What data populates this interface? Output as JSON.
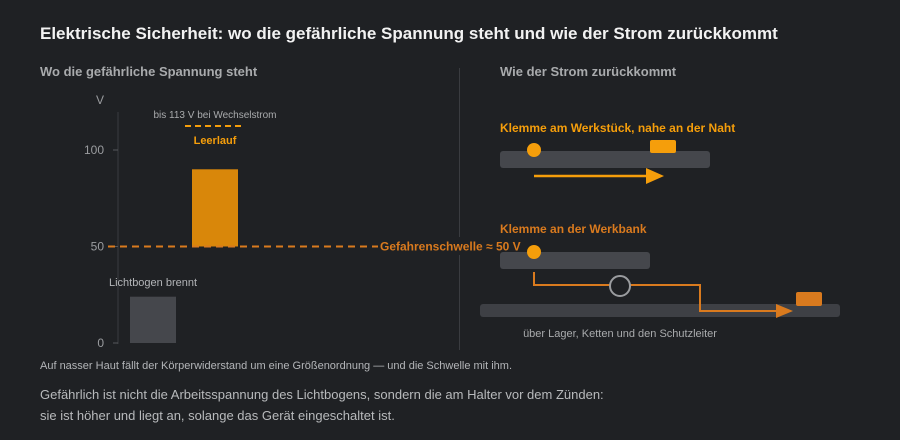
{
  "title": "Elektrische Sicherheit: wo die gefährliche Spannung steht und wie der Strom zurückkommt",
  "left_panel": {
    "heading": "Wo die gefährliche Spannung steht",
    "unit": "V",
    "ac_note": "bis 113 V bei Wechselstrom",
    "open_circuit_label": "Leerlauf",
    "arc_label": "Lichtbogen brennt",
    "threshold_label": "Gefahrenschwelle ≈ 50 V"
  },
  "chart_data": {
    "type": "bar",
    "ylabel": "V",
    "ylim": [
      0,
      120
    ],
    "ticks": [
      0,
      50,
      100
    ],
    "threshold": 50,
    "ac_max": 113,
    "bars": [
      {
        "label": "Lichtbogen brennt",
        "from": 0,
        "to": 24,
        "color": "#45474c"
      },
      {
        "label": "Leerlauf",
        "from": 50,
        "to": 90,
        "color": "#d9870a"
      }
    ]
  },
  "right_panel": {
    "heading": "Wie der Strom zurückkommt",
    "good_label": "Klemme am Werkstück, nahe an der Naht",
    "bad_label": "Klemme an der Werkbank",
    "path_note": "über Lager, Ketten und den Schutzleiter"
  },
  "footnote": "Auf nasser Haut fällt der Körperwiderstand um eine Größenordnung — und die Schwelle mit ihm.",
  "takeaway_line1": "Gefährlich ist nicht die Arbeitsspannung des Lichtbogens, sondern die am Halter vor dem Zünden:",
  "takeaway_line2": "sie ist höher und liegt an, solange das Gerät eingeschaltet ist.",
  "colors": {
    "background": "#1f2124",
    "accent_orange": "#f59e0b",
    "bar_orange": "#d9870a",
    "dark_orange": "#d97a1e",
    "muted_bar": "#45474c",
    "axis": "#3a3c40"
  }
}
